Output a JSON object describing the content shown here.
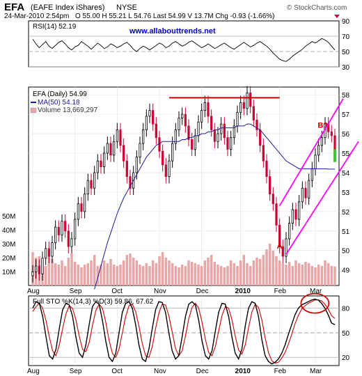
{
  "header": {
    "symbol": "EFA",
    "name": "(EAFE Index iShares)",
    "exchange": "NYSE",
    "date_time": "24-Mar-2010 2:54pm",
    "quote": "O 55.00  H 55.21  L 54.76  Last 54.99  V 13.7M  Chg -0.93 (-1.66%)",
    "copyright": "© StockCharts.com",
    "watermark": "www.allabouttrends.net"
  },
  "colors": {
    "price_up": "#000000",
    "price_down": "#cc0033",
    "ma": "#1a1a99",
    "volume": "#e8a6a6",
    "channel": "#ff00ff",
    "resistance": "#cc0000",
    "sto_k": "#000000",
    "sto_d": "#cc0000",
    "watermark": "#0000cc"
  },
  "chart_data": [
    {
      "type": "line",
      "panel": "rsi",
      "legend": "RSI(14) 52.19",
      "ylim": [
        30,
        90
      ],
      "yticks": [
        90,
        70,
        50,
        30
      ],
      "reference_lines": [
        70,
        50,
        30
      ],
      "series": [
        {
          "name": "RSI(14)",
          "values": [
            66,
            60,
            55,
            59,
            63,
            57,
            54,
            58,
            62,
            64,
            60,
            55,
            52,
            56,
            58,
            63,
            60,
            57,
            53,
            57,
            61,
            58,
            54,
            56,
            60,
            58,
            55,
            57,
            60,
            62,
            58,
            53,
            50,
            54,
            57,
            55,
            52,
            55,
            58,
            61,
            59,
            55,
            57,
            61,
            63,
            60,
            57,
            59,
            62,
            64,
            61,
            58,
            55,
            57,
            60,
            57,
            54,
            56,
            59,
            61,
            58,
            55,
            53,
            56,
            59,
            62,
            59,
            56,
            58,
            61,
            63,
            60,
            57,
            53,
            48,
            44,
            40,
            38,
            37,
            40,
            44,
            47,
            50,
            53,
            57,
            60,
            63,
            61,
            64,
            67,
            65,
            62,
            57,
            52
          ]
        }
      ]
    },
    {
      "type": "candlestick",
      "panel": "price",
      "legend": "EFA (Daily) 54.99",
      "ylim": [
        48.2,
        58.4
      ],
      "yticks": [
        58,
        57,
        56,
        55,
        54,
        53,
        52,
        51,
        50,
        49
      ],
      "x_labels": [
        "Aug",
        "Sep",
        "Oct",
        "Nov",
        "Dec",
        "2010",
        "Feb",
        "Mar"
      ],
      "series": [
        {
          "name": "EFA",
          "close": [
            48.9,
            49.2,
            48.8,
            49.6,
            50.1,
            49.7,
            50.4,
            51.2,
            50.8,
            51.5,
            51.0,
            50.2,
            50.6,
            51.6,
            52.4,
            52.0,
            52.9,
            53.6,
            53.2,
            54.0,
            54.6,
            54.3,
            55.0,
            55.5,
            54.9,
            55.6,
            56.2,
            55.4,
            54.6,
            53.8,
            53.2,
            54.0,
            54.8,
            55.5,
            56.2,
            56.9,
            57.2,
            56.5,
            55.8,
            55.1,
            54.4,
            53.8,
            54.6,
            55.5,
            56.2,
            56.8,
            57.0,
            56.4,
            55.7,
            55.2,
            55.9,
            56.6,
            57.2,
            57.6,
            56.9,
            56.2,
            55.6,
            56.0,
            56.5,
            55.8,
            55.2,
            55.8,
            56.4,
            57.1,
            57.6,
            57.3,
            58.1,
            57.4,
            56.7,
            56.2,
            55.4,
            54.6,
            53.8,
            52.9,
            52.4,
            51.3,
            50.2,
            49.7,
            50.6,
            51.4,
            52.1,
            51.6,
            52.5,
            53.2,
            52.7,
            53.6,
            54.2,
            54.9,
            55.4,
            55.8,
            56.5,
            56.1,
            55.9,
            54.99
          ],
          "volume": [
            24,
            20,
            21,
            18,
            14,
            22,
            19,
            16,
            15,
            18,
            14,
            20,
            23,
            17,
            15,
            13,
            15,
            16,
            18,
            22,
            14,
            15,
            18,
            16,
            19,
            15,
            14,
            15,
            18,
            22,
            23,
            20,
            18,
            15,
            14,
            16,
            14,
            18,
            16,
            21,
            24,
            20,
            18,
            16,
            14,
            13,
            15,
            14,
            18,
            17,
            16,
            15,
            14,
            18,
            20,
            22,
            17,
            15,
            14,
            13,
            14,
            18,
            16,
            14,
            18,
            22,
            16,
            14,
            18,
            20,
            19,
            22,
            26,
            30,
            25,
            21,
            18,
            16,
            15,
            17,
            14,
            18,
            16,
            15,
            17,
            16,
            14,
            13,
            15,
            14,
            18,
            16,
            14,
            13.7
          ],
          "volume_axis_labels": [
            "50M",
            "40M",
            "30M",
            "20M",
            "10M"
          ]
        },
        {
          "name": "MA(50) 54.18",
          "values": [
            null,
            null,
            null,
            null,
            null,
            null,
            null,
            null,
            null,
            null,
            null,
            null,
            null,
            null,
            null,
            null,
            null,
            null,
            null,
            48.0,
            48.6,
            49.2,
            49.8,
            50.4,
            50.9,
            51.4,
            51.9,
            52.3,
            52.7,
            53.0,
            53.3,
            53.6,
            53.9,
            54.2,
            54.5,
            54.8,
            55.0,
            55.2,
            55.4,
            55.5,
            55.6,
            55.6,
            55.6,
            55.6,
            55.6,
            55.6,
            55.7,
            55.7,
            55.8,
            55.8,
            55.9,
            55.9,
            56.0,
            56.0,
            56.1,
            56.1,
            56.2,
            56.2,
            56.3,
            56.3,
            56.3,
            56.3,
            56.3,
            56.4,
            56.4,
            56.4,
            56.5,
            56.5,
            56.4,
            56.3,
            56.2,
            56.0,
            55.8,
            55.6,
            55.4,
            55.2,
            55.0,
            54.8,
            54.6,
            54.5,
            54.4,
            54.3,
            54.2,
            54.2,
            54.2,
            54.2,
            54.2,
            54.2,
            54.2,
            54.2,
            54.2,
            54.18,
            54.18,
            54.18
          ]
        },
        {
          "name": "Volume 13,669,297",
          "values": []
        }
      ],
      "annotations": [
        {
          "text": "A",
          "color": "#cc0000"
        },
        {
          "text": "B?",
          "color": "#cc0000"
        }
      ]
    },
    {
      "type": "line",
      "panel": "stochastic",
      "legend": "Full STO %K(14,3) %D(3) 59.86, 67.62",
      "ylim": [
        10,
        95
      ],
      "yticks": [
        80,
        50,
        20
      ],
      "reference_lines": [
        80,
        50,
        20
      ],
      "x_labels": [
        "Aug",
        "Sep",
        "Oct",
        "Nov",
        "Dec",
        "2010",
        "Feb",
        "Mar"
      ],
      "series": [
        {
          "name": "%K",
          "values": [
            80,
            88,
            86,
            70,
            45,
            22,
            18,
            30,
            55,
            78,
            86,
            84,
            70,
            45,
            25,
            20,
            35,
            60,
            82,
            88,
            85,
            65,
            40,
            20,
            15,
            25,
            50,
            75,
            86,
            88,
            80,
            60,
            35,
            18,
            15,
            30,
            55,
            78,
            88,
            87,
            75,
            50,
            28,
            18,
            22,
            45,
            70,
            85,
            88,
            84,
            65,
            40,
            22,
            18,
            28,
            52,
            75,
            86,
            85,
            70,
            45,
            25,
            18,
            30,
            58,
            80,
            88,
            86,
            70,
            42,
            22,
            15,
            12,
            14,
            18,
            25,
            35,
            48,
            60,
            72,
            80,
            84,
            86,
            88,
            90,
            91,
            90,
            86,
            80,
            72,
            62,
            59.86
          ]
        },
        {
          "name": "%D",
          "values": [
            76,
            82,
            86,
            80,
            65,
            45,
            28,
            22,
            35,
            55,
            73,
            83,
            80,
            66,
            46,
            30,
            27,
            38,
            59,
            77,
            85,
            80,
            63,
            41,
            25,
            20,
            30,
            50,
            70,
            83,
            85,
            76,
            58,
            37,
            22,
            20,
            33,
            55,
            74,
            85,
            84,
            71,
            51,
            31,
            22,
            28,
            46,
            67,
            81,
            86,
            80,
            63,
            42,
            26,
            22,
            33,
            52,
            71,
            82,
            80,
            66,
            46,
            29,
            24,
            35,
            56,
            75,
            85,
            81,
            66,
            44,
            26,
            16,
            13,
            14,
            19,
            26,
            36,
            48,
            61,
            71,
            79,
            83,
            86,
            88,
            90,
            90,
            89,
            85,
            79,
            71,
            67.62
          ]
        }
      ]
    }
  ]
}
